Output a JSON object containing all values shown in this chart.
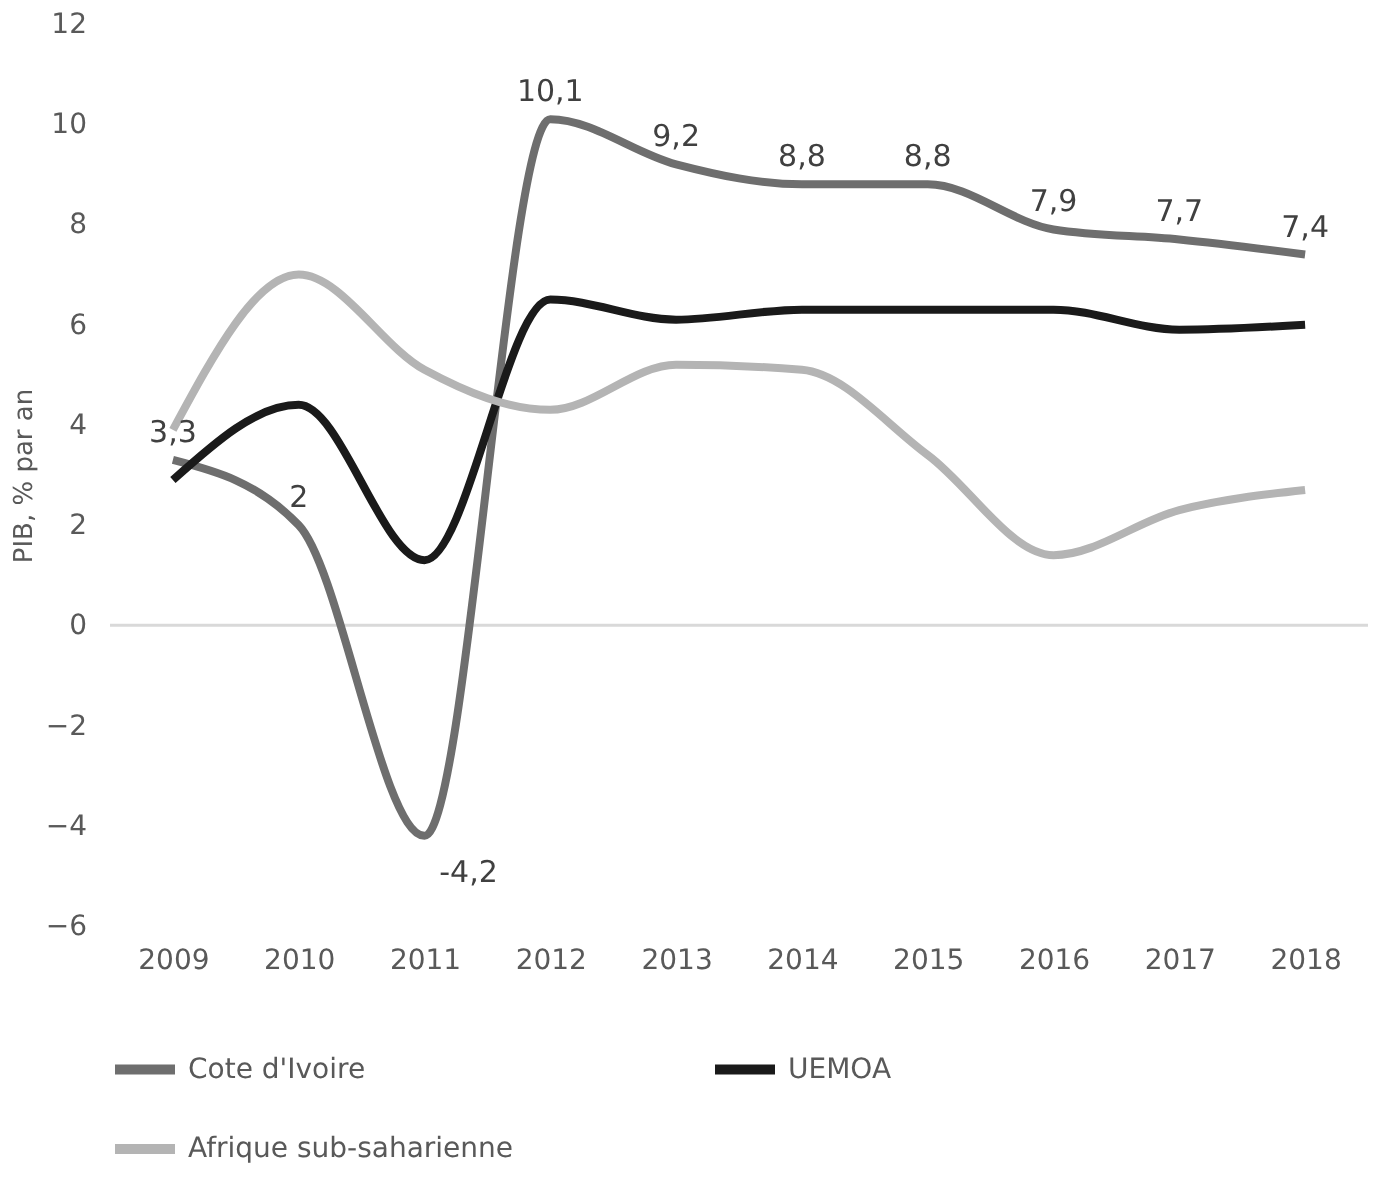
{
  "chart_data": {
    "type": "line",
    "ylabel": "PIB, % par an",
    "categories": [
      "2009",
      "2010",
      "2011",
      "2012",
      "2013",
      "2014",
      "2015",
      "2016",
      "2017",
      "2018"
    ],
    "series": [
      {
        "name": "Cote d'Ivoire",
        "color": "#6e6e6e",
        "values": [
          3.3,
          2,
          -4.2,
          10.1,
          9.2,
          8.8,
          8.8,
          7.9,
          7.7,
          7.4
        ],
        "value_labels": [
          "3,3",
          "2",
          "-4,2",
          "10,1",
          "9,2",
          "8,8",
          "8,8",
          "7,9",
          "7,7",
          "7,4"
        ]
      },
      {
        "name": "UEMOA",
        "color": "#1a1a1a",
        "values": [
          2.9,
          4.4,
          1.3,
          6.5,
          6.1,
          6.3,
          6.3,
          6.3,
          5.9,
          6.0
        ]
      },
      {
        "name": "Afrique sub-saharienne",
        "color": "#b4b4b4",
        "values": [
          3.9,
          7.0,
          5.1,
          4.3,
          5.2,
          5.1,
          3.4,
          1.4,
          2.3,
          2.7
        ]
      }
    ],
    "ylim": [
      -6,
      12
    ],
    "yticks": [
      -6,
      -4,
      -2,
      0,
      2,
      4,
      6,
      8,
      10,
      12
    ],
    "ref_lines": [
      {
        "axis": "y",
        "value": 0,
        "color": "#d9d9d9"
      }
    ],
    "grid": false,
    "legend": "bottom",
    "marker": "none",
    "line_style": "solid"
  }
}
